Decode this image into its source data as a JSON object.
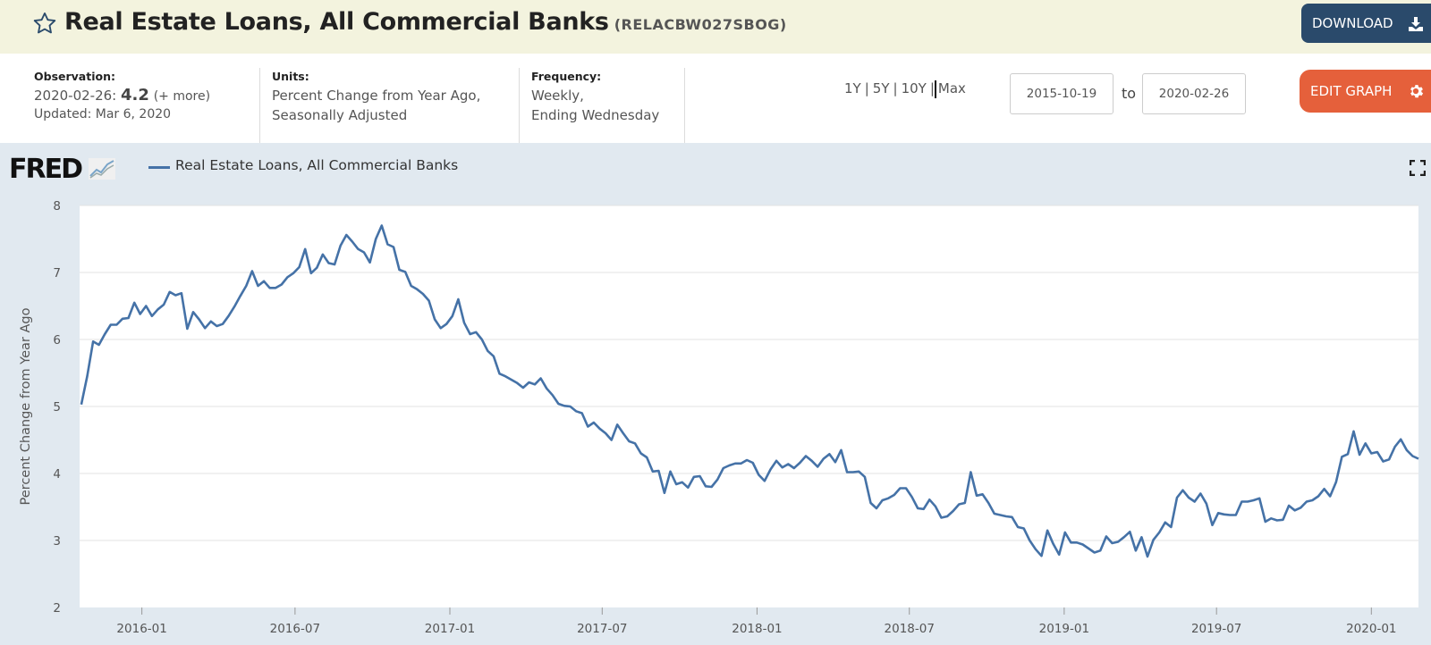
{
  "header": {
    "title": "Real Estate Loans, All Commercial Banks",
    "series_id": "(RELACBW027SBOG)",
    "download_label": "DOWNLOAD",
    "star_icon": "star-outline-icon",
    "download_icon": "download-icon"
  },
  "meta": {
    "observation": {
      "label": "Observation:",
      "date": "2020-02-26:",
      "value": "4.2",
      "more": "(+ more)",
      "updated": "Updated: Mar 6, 2020"
    },
    "units": {
      "label": "Units:",
      "line1": "Percent Change from Year Ago,",
      "line2": "Seasonally Adjusted"
    },
    "frequency": {
      "label": "Frequency:",
      "line1": "Weekly,",
      "line2": "Ending Wednesday"
    }
  },
  "controls": {
    "ranges": [
      "1Y",
      "5Y",
      "10Y",
      "Max"
    ],
    "start_date": "2015-10-19",
    "to_label": "to",
    "end_date": "2020-02-26",
    "edit_label": "EDIT GRAPH",
    "edit_icon": "gear-icon"
  },
  "chart_panel": {
    "logo_text": "FRED",
    "legend_label": "Real Estate Loans, All Commercial Banks",
    "fullscreen_icon": "fullscreen-icon",
    "colors": {
      "series": "#4572a7",
      "panel_bg": "#e1e9f0",
      "edit": "#e5603b",
      "download": "#2a4a6b"
    }
  },
  "chart_data": {
    "type": "line",
    "title": "",
    "xlabel": "",
    "ylabel": "Percent Change from Year Ago",
    "ylim": [
      2,
      8
    ],
    "yticks": [
      2,
      3,
      4,
      5,
      6,
      7,
      8
    ],
    "xlim": [
      "2015-10-19",
      "2020-02-26"
    ],
    "xticks": [
      {
        "label": "2016-01",
        "date": "2016-01-01"
      },
      {
        "label": "2016-07",
        "date": "2016-07-01"
      },
      {
        "label": "2017-01",
        "date": "2017-01-01"
      },
      {
        "label": "2017-07",
        "date": "2017-07-01"
      },
      {
        "label": "2018-01",
        "date": "2018-01-01"
      },
      {
        "label": "2018-07",
        "date": "2018-07-01"
      },
      {
        "label": "2019-01",
        "date": "2019-01-01"
      },
      {
        "label": "2019-07",
        "date": "2019-07-01"
      },
      {
        "label": "2020-01",
        "date": "2020-01-01"
      }
    ],
    "grid": true,
    "legend": "top-left",
    "series": [
      {
        "name": "Real Estate Loans, All Commercial Banks",
        "color": "#4572a7",
        "points": [
          [
            "2015-10-21",
            5.03
          ],
          [
            "2015-10-28",
            5.45
          ],
          [
            "2015-11-04",
            5.97
          ],
          [
            "2015-11-11",
            5.92
          ],
          [
            "2015-11-18",
            6.08
          ],
          [
            "2015-11-25",
            6.22
          ],
          [
            "2015-12-02",
            6.22
          ],
          [
            "2015-12-09",
            6.31
          ],
          [
            "2015-12-16",
            6.32
          ],
          [
            "2015-12-23",
            6.55
          ],
          [
            "2015-12-30",
            6.38
          ],
          [
            "2016-01-06",
            6.5
          ],
          [
            "2016-01-13",
            6.35
          ],
          [
            "2016-01-20",
            6.45
          ],
          [
            "2016-01-27",
            6.52
          ],
          [
            "2016-02-03",
            6.71
          ],
          [
            "2016-02-10",
            6.66
          ],
          [
            "2016-02-17",
            6.69
          ],
          [
            "2016-02-24",
            6.16
          ],
          [
            "2016-03-02",
            6.41
          ],
          [
            "2016-03-09",
            6.3
          ],
          [
            "2016-03-16",
            6.17
          ],
          [
            "2016-03-23",
            6.27
          ],
          [
            "2016-03-30",
            6.2
          ],
          [
            "2016-04-06",
            6.23
          ],
          [
            "2016-04-13",
            6.35
          ],
          [
            "2016-04-20",
            6.49
          ],
          [
            "2016-04-27",
            6.65
          ],
          [
            "2016-05-04",
            6.8
          ],
          [
            "2016-05-11",
            7.02
          ],
          [
            "2016-05-18",
            6.8
          ],
          [
            "2016-05-25",
            6.87
          ],
          [
            "2016-06-01",
            6.77
          ],
          [
            "2016-06-08",
            6.77
          ],
          [
            "2016-06-15",
            6.82
          ],
          [
            "2016-06-22",
            6.93
          ],
          [
            "2016-06-29",
            6.99
          ],
          [
            "2016-07-06",
            7.08
          ],
          [
            "2016-07-13",
            7.35
          ],
          [
            "2016-07-20",
            6.99
          ],
          [
            "2016-07-27",
            7.07
          ],
          [
            "2016-08-03",
            7.27
          ],
          [
            "2016-08-10",
            7.14
          ],
          [
            "2016-08-17",
            7.12
          ],
          [
            "2016-08-24",
            7.4
          ],
          [
            "2016-08-31",
            7.56
          ],
          [
            "2016-09-07",
            7.46
          ],
          [
            "2016-09-14",
            7.35
          ],
          [
            "2016-09-21",
            7.3
          ],
          [
            "2016-09-28",
            7.15
          ],
          [
            "2016-10-05",
            7.5
          ],
          [
            "2016-10-12",
            7.7
          ],
          [
            "2016-10-19",
            7.42
          ],
          [
            "2016-10-26",
            7.38
          ],
          [
            "2016-11-02",
            7.04
          ],
          [
            "2016-11-09",
            7.01
          ],
          [
            "2016-11-16",
            6.8
          ],
          [
            "2016-11-23",
            6.75
          ],
          [
            "2016-11-30",
            6.68
          ],
          [
            "2016-12-07",
            6.58
          ],
          [
            "2016-12-14",
            6.3
          ],
          [
            "2016-12-21",
            6.17
          ],
          [
            "2016-12-28",
            6.23
          ],
          [
            "2017-01-04",
            6.35
          ],
          [
            "2017-01-11",
            6.6
          ],
          [
            "2017-01-18",
            6.25
          ],
          [
            "2017-01-25",
            6.08
          ],
          [
            "2017-02-01",
            6.11
          ],
          [
            "2017-02-08",
            6.0
          ],
          [
            "2017-02-15",
            5.83
          ],
          [
            "2017-02-22",
            5.75
          ],
          [
            "2017-03-01",
            5.49
          ],
          [
            "2017-03-08",
            5.45
          ],
          [
            "2017-03-15",
            5.4
          ],
          [
            "2017-03-22",
            5.35
          ],
          [
            "2017-03-29",
            5.28
          ],
          [
            "2017-04-05",
            5.36
          ],
          [
            "2017-04-12",
            5.33
          ],
          [
            "2017-04-19",
            5.42
          ],
          [
            "2017-04-26",
            5.27
          ],
          [
            "2017-05-03",
            5.17
          ],
          [
            "2017-05-10",
            5.04
          ],
          [
            "2017-05-17",
            5.01
          ],
          [
            "2017-05-24",
            5.0
          ],
          [
            "2017-05-31",
            4.93
          ],
          [
            "2017-06-07",
            4.9
          ],
          [
            "2017-06-14",
            4.7
          ],
          [
            "2017-06-21",
            4.76
          ],
          [
            "2017-06-28",
            4.67
          ],
          [
            "2017-07-05",
            4.6
          ],
          [
            "2017-07-12",
            4.5
          ],
          [
            "2017-07-19",
            4.73
          ],
          [
            "2017-07-26",
            4.6
          ],
          [
            "2017-08-02",
            4.48
          ],
          [
            "2017-08-09",
            4.45
          ],
          [
            "2017-08-16",
            4.3
          ],
          [
            "2017-08-23",
            4.24
          ],
          [
            "2017-08-30",
            4.03
          ],
          [
            "2017-09-06",
            4.04
          ],
          [
            "2017-09-13",
            3.71
          ],
          [
            "2017-09-20",
            4.03
          ],
          [
            "2017-09-27",
            3.84
          ],
          [
            "2017-10-04",
            3.87
          ],
          [
            "2017-10-11",
            3.79
          ],
          [
            "2017-10-18",
            3.95
          ],
          [
            "2017-10-25",
            3.96
          ],
          [
            "2017-11-01",
            3.81
          ],
          [
            "2017-11-08",
            3.8
          ],
          [
            "2017-11-15",
            3.91
          ],
          [
            "2017-11-22",
            4.08
          ],
          [
            "2017-11-29",
            4.12
          ],
          [
            "2017-12-06",
            4.15
          ],
          [
            "2017-12-13",
            4.15
          ],
          [
            "2017-12-20",
            4.2
          ],
          [
            "2017-12-27",
            4.16
          ],
          [
            "2018-01-03",
            3.98
          ],
          [
            "2018-01-10",
            3.89
          ],
          [
            "2018-01-17",
            4.06
          ],
          [
            "2018-01-24",
            4.19
          ],
          [
            "2018-01-31",
            4.09
          ],
          [
            "2018-02-07",
            4.14
          ],
          [
            "2018-02-14",
            4.08
          ],
          [
            "2018-02-21",
            4.16
          ],
          [
            "2018-02-28",
            4.26
          ],
          [
            "2018-03-07",
            4.19
          ],
          [
            "2018-03-14",
            4.1
          ],
          [
            "2018-03-21",
            4.22
          ],
          [
            "2018-03-28",
            4.29
          ],
          [
            "2018-04-04",
            4.17
          ],
          [
            "2018-04-11",
            4.35
          ],
          [
            "2018-04-18",
            4.02
          ],
          [
            "2018-04-25",
            4.02
          ],
          [
            "2018-05-02",
            4.03
          ],
          [
            "2018-05-09",
            3.95
          ],
          [
            "2018-05-16",
            3.56
          ],
          [
            "2018-05-23",
            3.48
          ],
          [
            "2018-05-30",
            3.6
          ],
          [
            "2018-06-06",
            3.63
          ],
          [
            "2018-06-13",
            3.68
          ],
          [
            "2018-06-20",
            3.78
          ],
          [
            "2018-06-27",
            3.78
          ],
          [
            "2018-07-04",
            3.65
          ],
          [
            "2018-07-11",
            3.48
          ],
          [
            "2018-07-18",
            3.47
          ],
          [
            "2018-07-25",
            3.61
          ],
          [
            "2018-08-01",
            3.51
          ],
          [
            "2018-08-08",
            3.34
          ],
          [
            "2018-08-15",
            3.36
          ],
          [
            "2018-08-22",
            3.44
          ],
          [
            "2018-08-29",
            3.54
          ],
          [
            "2018-09-05",
            3.56
          ],
          [
            "2018-09-12",
            4.02
          ],
          [
            "2018-09-19",
            3.67
          ],
          [
            "2018-09-26",
            3.69
          ],
          [
            "2018-10-03",
            3.56
          ],
          [
            "2018-10-10",
            3.4
          ],
          [
            "2018-10-17",
            3.38
          ],
          [
            "2018-10-24",
            3.36
          ],
          [
            "2018-10-31",
            3.35
          ],
          [
            "2018-11-07",
            3.2
          ],
          [
            "2018-11-14",
            3.18
          ],
          [
            "2018-11-21",
            3.0
          ],
          [
            "2018-11-28",
            2.87
          ],
          [
            "2018-12-05",
            2.77
          ],
          [
            "2018-12-12",
            3.15
          ],
          [
            "2018-12-19",
            2.95
          ],
          [
            "2018-12-26",
            2.79
          ],
          [
            "2019-01-02",
            3.12
          ],
          [
            "2019-01-09",
            2.97
          ],
          [
            "2019-01-16",
            2.97
          ],
          [
            "2019-01-23",
            2.94
          ],
          [
            "2019-01-30",
            2.88
          ],
          [
            "2019-02-06",
            2.82
          ],
          [
            "2019-02-13",
            2.85
          ],
          [
            "2019-02-20",
            3.06
          ],
          [
            "2019-02-27",
            2.96
          ],
          [
            "2019-03-06",
            2.98
          ],
          [
            "2019-03-13",
            3.05
          ],
          [
            "2019-03-20",
            3.13
          ],
          [
            "2019-03-27",
            2.85
          ],
          [
            "2019-04-03",
            3.05
          ],
          [
            "2019-04-10",
            2.76
          ],
          [
            "2019-04-17",
            3.01
          ],
          [
            "2019-04-24",
            3.12
          ],
          [
            "2019-05-01",
            3.27
          ],
          [
            "2019-05-08",
            3.2
          ],
          [
            "2019-05-15",
            3.64
          ],
          [
            "2019-05-22",
            3.75
          ],
          [
            "2019-05-29",
            3.64
          ],
          [
            "2019-06-05",
            3.58
          ],
          [
            "2019-06-12",
            3.7
          ],
          [
            "2019-06-19",
            3.55
          ],
          [
            "2019-06-26",
            3.23
          ],
          [
            "2019-07-03",
            3.41
          ],
          [
            "2019-07-10",
            3.39
          ],
          [
            "2019-07-17",
            3.38
          ],
          [
            "2019-07-24",
            3.38
          ],
          [
            "2019-07-31",
            3.58
          ],
          [
            "2019-08-07",
            3.58
          ],
          [
            "2019-08-14",
            3.6
          ],
          [
            "2019-08-21",
            3.63
          ],
          [
            "2019-08-28",
            3.28
          ],
          [
            "2019-09-04",
            3.33
          ],
          [
            "2019-09-11",
            3.3
          ],
          [
            "2019-09-18",
            3.31
          ],
          [
            "2019-09-25",
            3.52
          ],
          [
            "2019-10-02",
            3.45
          ],
          [
            "2019-10-09",
            3.49
          ],
          [
            "2019-10-16",
            3.58
          ],
          [
            "2019-10-23",
            3.6
          ],
          [
            "2019-10-30",
            3.66
          ],
          [
            "2019-11-06",
            3.77
          ],
          [
            "2019-11-13",
            3.66
          ],
          [
            "2019-11-20",
            3.87
          ],
          [
            "2019-11-27",
            4.25
          ],
          [
            "2019-12-04",
            4.29
          ],
          [
            "2019-12-11",
            4.63
          ],
          [
            "2019-12-18",
            4.28
          ],
          [
            "2019-12-25",
            4.45
          ],
          [
            "2020-01-01",
            4.3
          ],
          [
            "2020-01-08",
            4.32
          ],
          [
            "2020-01-15",
            4.18
          ],
          [
            "2020-01-22",
            4.21
          ],
          [
            "2020-01-29",
            4.4
          ],
          [
            "2020-02-05",
            4.51
          ],
          [
            "2020-02-12",
            4.35
          ],
          [
            "2020-02-19",
            4.26
          ],
          [
            "2020-02-26",
            4.22
          ]
        ]
      }
    ]
  }
}
